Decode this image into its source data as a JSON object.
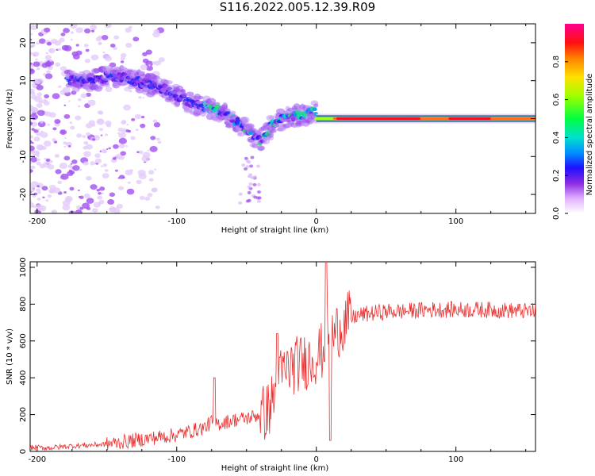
{
  "title": "S116.2022.005.12.39.R09",
  "chart_data": [
    {
      "type": "heatmap",
      "xlabel": "Height of straight line (km)",
      "ylabel": "Frequency (Hz)",
      "xlim": [
        -205,
        157
      ],
      "ylim": [
        -25,
        25
      ],
      "x_ticks": [
        -200,
        -100,
        0,
        100
      ],
      "y_ticks": [
        -20,
        -10,
        0,
        10,
        20
      ],
      "colorbar": {
        "label": "Normalized spectral amplitude",
        "range": [
          0,
          1
        ],
        "ticks": [
          0.0,
          0.2,
          0.4,
          0.6,
          0.8
        ]
      },
      "ridge": {
        "x": [
          -175,
          -160,
          -150,
          -140,
          -130,
          -120,
          -110,
          -100,
          -90,
          -80,
          -70,
          -60,
          -50,
          -42,
          -38,
          -30,
          -20,
          -10,
          0,
          10,
          20,
          40,
          60,
          80,
          100,
          120,
          140,
          157
        ],
        "y": [
          10,
          10,
          11,
          11,
          10,
          9,
          8,
          6,
          4,
          3,
          2,
          0,
          -3,
          -6,
          -5,
          -1,
          0.5,
          1,
          2,
          0.5,
          0,
          0,
          0,
          0,
          0,
          0,
          0,
          0
        ]
      }
    },
    {
      "type": "line",
      "xlabel": "Height of straight line (km)",
      "ylabel": "SNR (10 * v/v)",
      "xlim": [
        -205,
        157
      ],
      "ylim": [
        0,
        1030
      ],
      "x_ticks": [
        -200,
        -100,
        0,
        100
      ],
      "y_ticks": [
        0,
        200,
        400,
        600,
        800,
        1000
      ],
      "color": "#e83030",
      "series": [
        {
          "x": [
            -205,
            -190,
            -175,
            -160,
            -150,
            -140,
            -130,
            -120,
            -110,
            -100,
            -90,
            -80,
            -75,
            -70,
            -60,
            -50,
            -40,
            -35,
            -30,
            -25,
            -20,
            -15,
            -10,
            -5,
            0,
            5,
            8,
            10,
            12,
            15,
            20,
            25,
            30,
            40,
            50,
            60,
            80,
            100,
            120,
            140,
            157
          ],
          "values": [
            20,
            20,
            30,
            35,
            40,
            50,
            60,
            70,
            80,
            90,
            110,
            130,
            160,
            150,
            170,
            180,
            200,
            220,
            300,
            420,
            450,
            470,
            480,
            500,
            520,
            550,
            600,
            650,
            620,
            660,
            700,
            720,
            740,
            750,
            760,
            760,
            770,
            770,
            770,
            765,
            760
          ]
        }
      ],
      "spikes": [
        {
          "x": -73,
          "y": 400
        },
        {
          "x": -28,
          "y": 640
        },
        {
          "x": 7,
          "y": 1030
        },
        {
          "x": 10,
          "y": 60
        }
      ]
    }
  ]
}
